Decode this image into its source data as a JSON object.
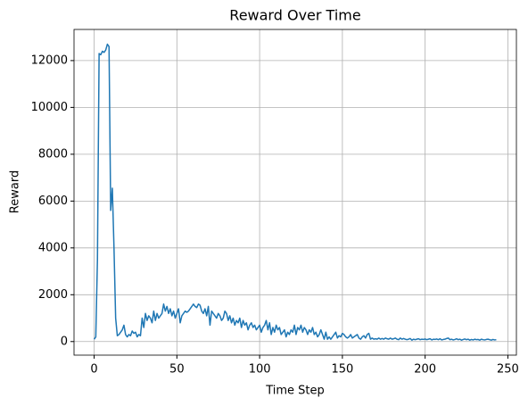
{
  "chart_data": {
    "type": "line",
    "title": "Reward Over Time",
    "x_label": "Time Step",
    "y_label": "Reward",
    "x": [
      0,
      1,
      2,
      3,
      4,
      5,
      6,
      7,
      8,
      9,
      10,
      11,
      12,
      13,
      14,
      15,
      16,
      17,
      18,
      19,
      20,
      21,
      22,
      23,
      24,
      25,
      26,
      27,
      28,
      29,
      30,
      31,
      32,
      33,
      34,
      35,
      36,
      37,
      38,
      39,
      40,
      41,
      42,
      43,
      44,
      45,
      46,
      47,
      48,
      49,
      50,
      51,
      52,
      53,
      54,
      55,
      56,
      57,
      58,
      59,
      60,
      61,
      62,
      63,
      64,
      65,
      66,
      67,
      68,
      69,
      70,
      71,
      72,
      73,
      74,
      75,
      76,
      77,
      78,
      79,
      80,
      81,
      82,
      83,
      84,
      85,
      86,
      87,
      88,
      89,
      90,
      91,
      92,
      93,
      94,
      95,
      96,
      97,
      98,
      99,
      100,
      101,
      102,
      103,
      104,
      105,
      106,
      107,
      108,
      109,
      110,
      111,
      112,
      113,
      114,
      115,
      116,
      117,
      118,
      119,
      120,
      121,
      122,
      123,
      124,
      125,
      126,
      127,
      128,
      129,
      130,
      131,
      132,
      133,
      134,
      135,
      136,
      137,
      138,
      139,
      140,
      141,
      142,
      143,
      144,
      145,
      146,
      147,
      148,
      149,
      150,
      151,
      152,
      153,
      154,
      155,
      156,
      157,
      158,
      159,
      160,
      161,
      162,
      163,
      164,
      165,
      166,
      167,
      168,
      169,
      170,
      171,
      172,
      173,
      174,
      175,
      176,
      177,
      178,
      179,
      180,
      181,
      182,
      183,
      184,
      185,
      186,
      187,
      188,
      189,
      190,
      191,
      192,
      193,
      194,
      195,
      196,
      197,
      198,
      199,
      200,
      201,
      202,
      203,
      204,
      205,
      206,
      207,
      208,
      209,
      210,
      211,
      212,
      213,
      214,
      215,
      216,
      217,
      218,
      219,
      220,
      221,
      222,
      223,
      224,
      225,
      226,
      227,
      228,
      229,
      230,
      231,
      232,
      233,
      234,
      235,
      236,
      237,
      238,
      239,
      240,
      241,
      242,
      243
    ],
    "series": [
      {
        "color": "#1f77b4",
        "values": [
          100,
          200,
          3500,
          12300,
          12250,
          12400,
          12350,
          12450,
          12700,
          12600,
          5600,
          6550,
          4000,
          1000,
          250,
          300,
          400,
          500,
          700,
          300,
          200,
          300,
          250,
          450,
          350,
          400,
          200,
          300,
          250,
          1000,
          600,
          1200,
          900,
          1100,
          1000,
          800,
          1300,
          900,
          1200,
          1000,
          1100,
          1200,
          1600,
          1300,
          1500,
          1200,
          1400,
          1100,
          1300,
          1000,
          1200,
          1400,
          800,
          1100,
          1200,
          1300,
          1250,
          1300,
          1400,
          1500,
          1600,
          1500,
          1450,
          1600,
          1550,
          1300,
          1200,
          1400,
          1100,
          1500,
          700,
          1300,
          1200,
          1100,
          1000,
          1200,
          1100,
          900,
          1000,
          1300,
          1200,
          900,
          1100,
          800,
          1000,
          700,
          900,
          800,
          1000,
          600,
          900,
          700,
          800,
          500,
          700,
          800,
          600,
          700,
          500,
          600,
          700,
          400,
          600,
          700,
          900,
          500,
          800,
          300,
          600,
          400,
          700,
          500,
          600,
          300,
          400,
          500,
          200,
          400,
          300,
          500,
          400,
          700,
          300,
          600,
          500,
          700,
          400,
          600,
          500,
          300,
          500,
          400,
          600,
          300,
          400,
          200,
          300,
          500,
          300,
          100,
          400,
          100,
          200,
          100,
          200,
          300,
          400,
          150,
          250,
          200,
          350,
          300,
          200,
          150,
          200,
          300,
          150,
          200,
          250,
          300,
          150,
          100,
          200,
          250,
          150,
          300,
          350,
          100,
          150,
          100,
          120,
          100,
          150,
          100,
          130,
          100,
          150,
          120,
          100,
          150,
          100,
          120,
          150,
          100,
          80,
          150,
          100,
          130,
          100,
          80,
          100,
          130,
          60,
          100,
          80,
          100,
          120,
          80,
          100,
          90,
          110,
          80,
          100,
          120,
          70,
          100,
          90,
          110,
          80,
          120,
          70,
          90,
          100,
          130,
          150,
          80,
          100,
          70,
          90,
          120,
          80,
          100,
          60,
          90,
          110,
          80,
          100,
          60,
          90,
          70,
          100,
          80,
          90,
          60,
          100,
          80,
          70,
          90,
          100,
          80,
          60,
          90,
          70,
          80
        ]
      }
    ],
    "xlim": [
      -12.15,
      255.15
    ],
    "xticks": [
      0,
      50,
      100,
      150,
      200,
      250
    ],
    "ylim": [
      -580,
      13330
    ],
    "yticks": [
      0,
      2000,
      4000,
      6000,
      8000,
      10000,
      12000
    ],
    "grid": true
  }
}
